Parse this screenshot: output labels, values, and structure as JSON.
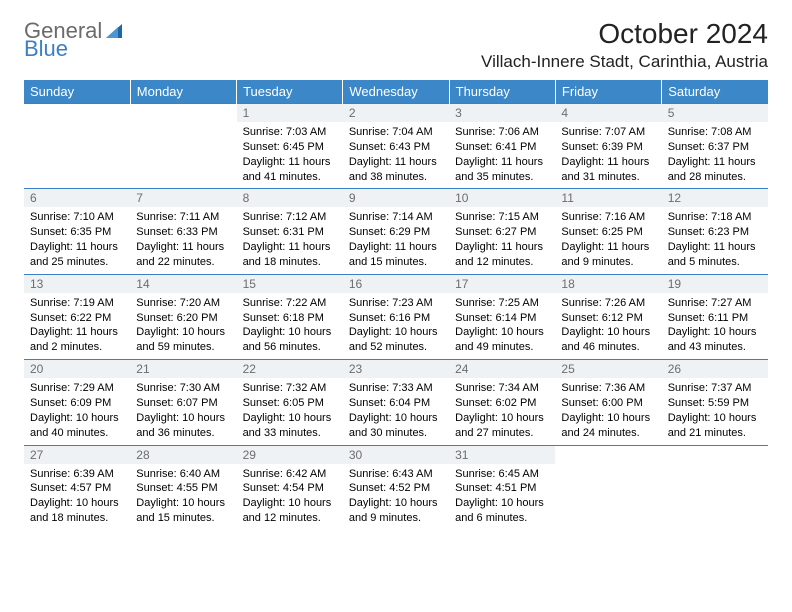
{
  "logo": {
    "text1": "General",
    "text2": "Blue"
  },
  "header": {
    "title": "October 2024",
    "location": "Villach-Innere Stadt, Carinthia, Austria"
  },
  "colors": {
    "headerBg": "#3b87c8",
    "dayRowBg": "#eef2f5",
    "dayNum": "#6d6d6d",
    "border": "#3b7fc4",
    "logoGray": "#6b6b6b",
    "logoBlue": "#3b7fc4"
  },
  "dayNames": [
    "Sunday",
    "Monday",
    "Tuesday",
    "Wednesday",
    "Thursday",
    "Friday",
    "Saturday"
  ],
  "weeks": [
    [
      null,
      null,
      {
        "n": "1",
        "sr": "7:03 AM",
        "ss": "6:45 PM",
        "dl": "11 hours and 41 minutes."
      },
      {
        "n": "2",
        "sr": "7:04 AM",
        "ss": "6:43 PM",
        "dl": "11 hours and 38 minutes."
      },
      {
        "n": "3",
        "sr": "7:06 AM",
        "ss": "6:41 PM",
        "dl": "11 hours and 35 minutes."
      },
      {
        "n": "4",
        "sr": "7:07 AM",
        "ss": "6:39 PM",
        "dl": "11 hours and 31 minutes."
      },
      {
        "n": "5",
        "sr": "7:08 AM",
        "ss": "6:37 PM",
        "dl": "11 hours and 28 minutes."
      }
    ],
    [
      {
        "n": "6",
        "sr": "7:10 AM",
        "ss": "6:35 PM",
        "dl": "11 hours and 25 minutes."
      },
      {
        "n": "7",
        "sr": "7:11 AM",
        "ss": "6:33 PM",
        "dl": "11 hours and 22 minutes."
      },
      {
        "n": "8",
        "sr": "7:12 AM",
        "ss": "6:31 PM",
        "dl": "11 hours and 18 minutes."
      },
      {
        "n": "9",
        "sr": "7:14 AM",
        "ss": "6:29 PM",
        "dl": "11 hours and 15 minutes."
      },
      {
        "n": "10",
        "sr": "7:15 AM",
        "ss": "6:27 PM",
        "dl": "11 hours and 12 minutes."
      },
      {
        "n": "11",
        "sr": "7:16 AM",
        "ss": "6:25 PM",
        "dl": "11 hours and 9 minutes."
      },
      {
        "n": "12",
        "sr": "7:18 AM",
        "ss": "6:23 PM",
        "dl": "11 hours and 5 minutes."
      }
    ],
    [
      {
        "n": "13",
        "sr": "7:19 AM",
        "ss": "6:22 PM",
        "dl": "11 hours and 2 minutes."
      },
      {
        "n": "14",
        "sr": "7:20 AM",
        "ss": "6:20 PM",
        "dl": "10 hours and 59 minutes."
      },
      {
        "n": "15",
        "sr": "7:22 AM",
        "ss": "6:18 PM",
        "dl": "10 hours and 56 minutes."
      },
      {
        "n": "16",
        "sr": "7:23 AM",
        "ss": "6:16 PM",
        "dl": "10 hours and 52 minutes."
      },
      {
        "n": "17",
        "sr": "7:25 AM",
        "ss": "6:14 PM",
        "dl": "10 hours and 49 minutes."
      },
      {
        "n": "18",
        "sr": "7:26 AM",
        "ss": "6:12 PM",
        "dl": "10 hours and 46 minutes."
      },
      {
        "n": "19",
        "sr": "7:27 AM",
        "ss": "6:11 PM",
        "dl": "10 hours and 43 minutes."
      }
    ],
    [
      {
        "n": "20",
        "sr": "7:29 AM",
        "ss": "6:09 PM",
        "dl": "10 hours and 40 minutes."
      },
      {
        "n": "21",
        "sr": "7:30 AM",
        "ss": "6:07 PM",
        "dl": "10 hours and 36 minutes."
      },
      {
        "n": "22",
        "sr": "7:32 AM",
        "ss": "6:05 PM",
        "dl": "10 hours and 33 minutes."
      },
      {
        "n": "23",
        "sr": "7:33 AM",
        "ss": "6:04 PM",
        "dl": "10 hours and 30 minutes."
      },
      {
        "n": "24",
        "sr": "7:34 AM",
        "ss": "6:02 PM",
        "dl": "10 hours and 27 minutes."
      },
      {
        "n": "25",
        "sr": "7:36 AM",
        "ss": "6:00 PM",
        "dl": "10 hours and 24 minutes."
      },
      {
        "n": "26",
        "sr": "7:37 AM",
        "ss": "5:59 PM",
        "dl": "10 hours and 21 minutes."
      }
    ],
    [
      {
        "n": "27",
        "sr": "6:39 AM",
        "ss": "4:57 PM",
        "dl": "10 hours and 18 minutes."
      },
      {
        "n": "28",
        "sr": "6:40 AM",
        "ss": "4:55 PM",
        "dl": "10 hours and 15 minutes."
      },
      {
        "n": "29",
        "sr": "6:42 AM",
        "ss": "4:54 PM",
        "dl": "10 hours and 12 minutes."
      },
      {
        "n": "30",
        "sr": "6:43 AM",
        "ss": "4:52 PM",
        "dl": "10 hours and 9 minutes."
      },
      {
        "n": "31",
        "sr": "6:45 AM",
        "ss": "4:51 PM",
        "dl": "10 hours and 6 minutes."
      },
      null,
      null
    ]
  ],
  "labels": {
    "sunrise": "Sunrise:",
    "sunset": "Sunset:",
    "daylight": "Daylight:"
  }
}
